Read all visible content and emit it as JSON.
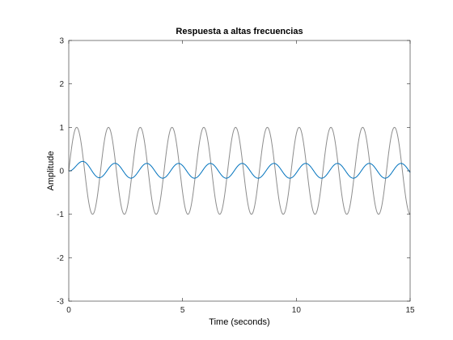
{
  "chart_data": {
    "type": "line",
    "title": "Respuesta a altas frecuencias",
    "xlabel": "Time (seconds)",
    "ylabel": "Amplitude",
    "xlim": [
      0,
      15
    ],
    "ylim": [
      -3,
      3
    ],
    "xticks": [
      0,
      5,
      10,
      15
    ],
    "yticks": [
      -3,
      -2,
      -1,
      0,
      1,
      2,
      3
    ],
    "grid": false,
    "legend": "none",
    "series": [
      {
        "color": "#8c8c8c",
        "function": "sin",
        "amplitude": 1,
        "frequency_rad_s": 4.5,
        "t_start": 0,
        "t_end": 15
      },
      {
        "color": "#0072bd",
        "function": "sin_with_phase_lag",
        "amplitude": 0.17,
        "frequency_rad_s": 4.5,
        "phase_lag_rad": 1.3,
        "t_start": 0,
        "t_end": 15
      }
    ]
  }
}
